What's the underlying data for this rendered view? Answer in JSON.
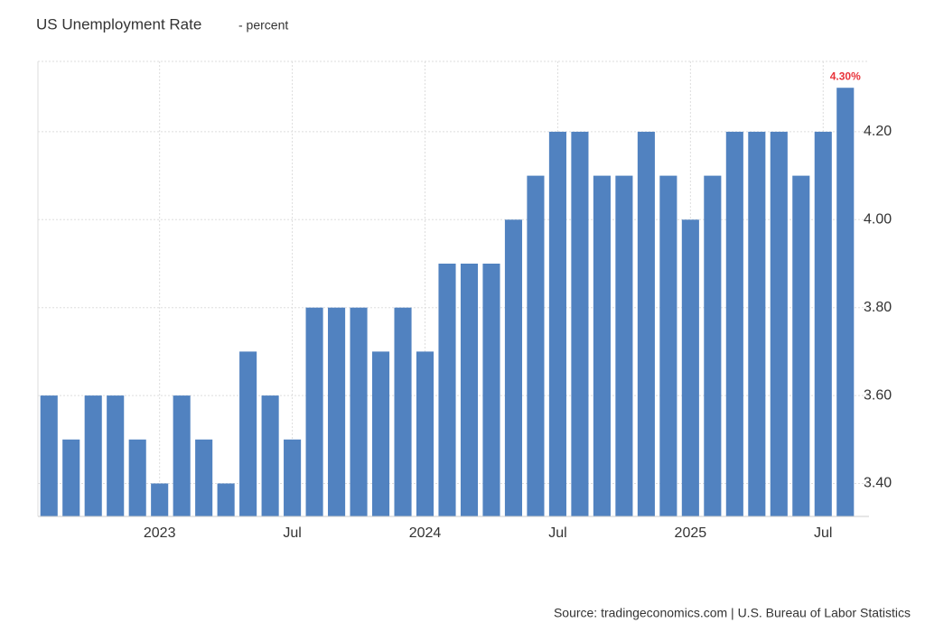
{
  "chart_data": {
    "type": "bar",
    "title": "US Unemployment Rate",
    "subtitle": "- percent",
    "source": "Source: tradingeconomics.com | U.S. Bureau of Labor Statistics",
    "categories": [
      null,
      null,
      null,
      null,
      null,
      "2023",
      null,
      null,
      null,
      null,
      null,
      "Jul",
      null,
      null,
      null,
      null,
      null,
      "2024",
      null,
      null,
      null,
      null,
      null,
      "Jul",
      null,
      null,
      null,
      null,
      null,
      "2025",
      null,
      null,
      null,
      null,
      null,
      "Jul",
      null
    ],
    "values": [
      3.6,
      3.5,
      3.6,
      3.6,
      3.5,
      3.4,
      3.6,
      3.5,
      3.4,
      3.7,
      3.6,
      3.5,
      3.8,
      3.8,
      3.8,
      3.7,
      3.8,
      3.7,
      3.9,
      3.9,
      3.9,
      4.0,
      4.1,
      4.2,
      4.2,
      4.1,
      4.1,
      4.2,
      4.1,
      4.0,
      4.1,
      4.2,
      4.2,
      4.2,
      4.1,
      4.2,
      4.3
    ],
    "value_labels": [
      null,
      null,
      null,
      null,
      null,
      null,
      null,
      null,
      null,
      null,
      null,
      null,
      null,
      null,
      null,
      null,
      null,
      null,
      null,
      null,
      null,
      null,
      null,
      null,
      null,
      null,
      null,
      null,
      null,
      null,
      null,
      null,
      null,
      null,
      null,
      null,
      "4.30%"
    ],
    "color": "#5182c0",
    "ylim": [
      3.325,
      4.36
    ],
    "yticks": [
      {
        "value": 3.4,
        "label": "3.40"
      },
      {
        "value": 3.6,
        "label": "3.60"
      },
      {
        "value": 3.8,
        "label": "3.80"
      },
      {
        "value": 4.0,
        "label": "4.00"
      },
      {
        "value": 4.2,
        "label": "4.20"
      }
    ],
    "grid": true
  }
}
